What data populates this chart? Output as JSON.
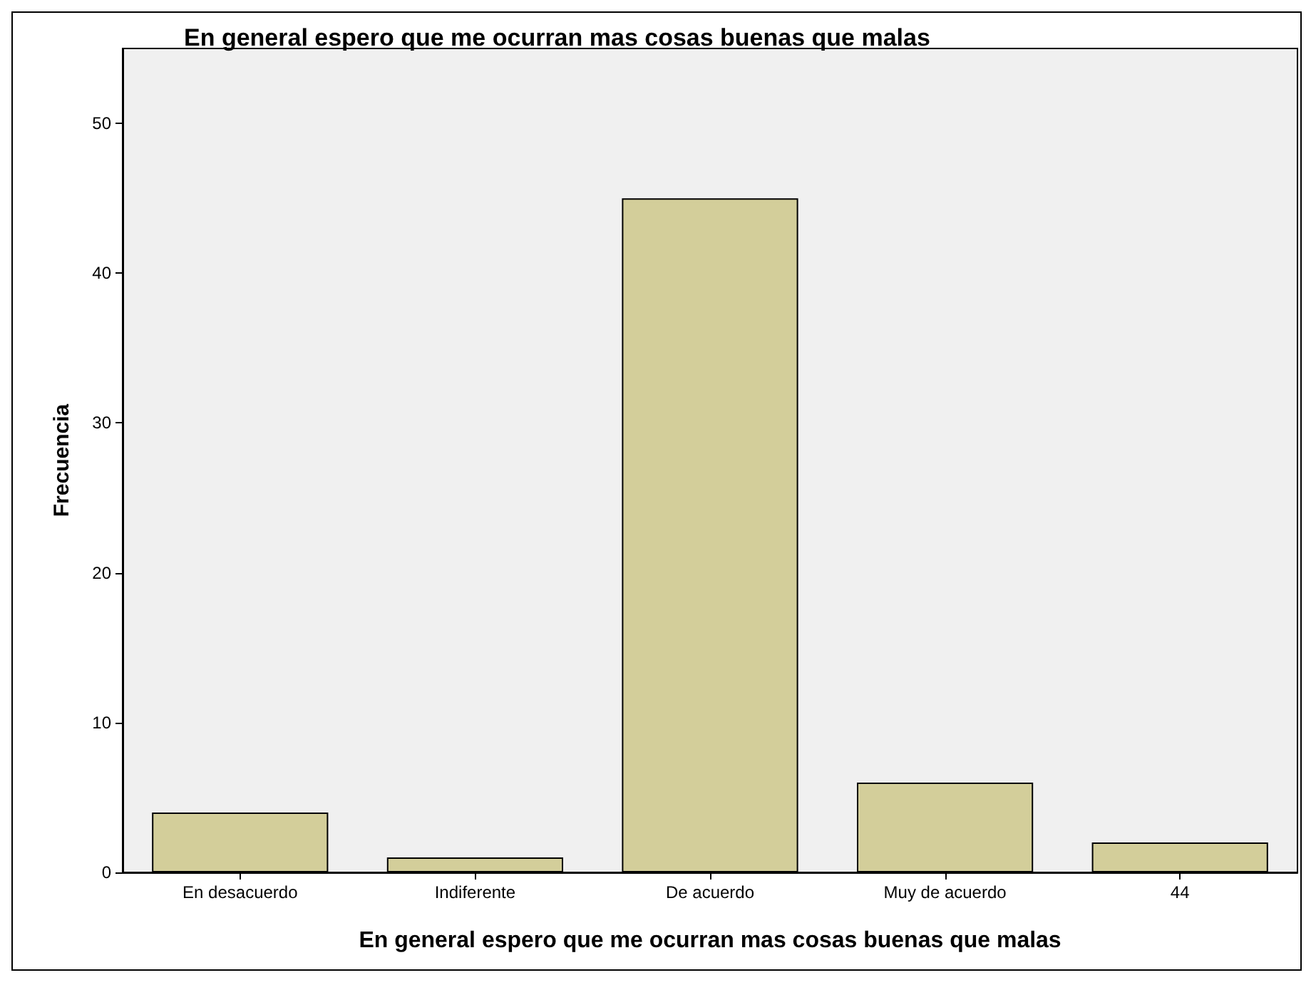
{
  "chart_data": {
    "type": "bar",
    "title": "En general espero que me ocurran mas cosas buenas que malas",
    "xlabel": "En general espero que me ocurran mas cosas buenas que malas",
    "ylabel": "Frecuencia",
    "categories": [
      "En desacuerdo",
      "Indiferente",
      "De acuerdo",
      "Muy de acuerdo",
      "44"
    ],
    "values": [
      4,
      1,
      45,
      6,
      2
    ],
    "color": "#d3ce9a",
    "ylim": [
      0,
      55
    ],
    "yticks": [
      0,
      10,
      20,
      30,
      40,
      50
    ],
    "grid": false
  }
}
